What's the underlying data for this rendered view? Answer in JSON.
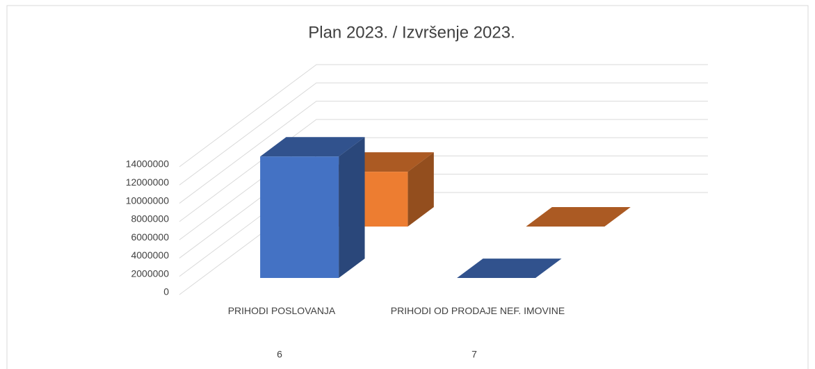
{
  "chart_data": {
    "type": "bar3d",
    "title": "Plan 2023. / Izvršenje 2023.",
    "categories": [
      "PRIHODI POSLOVANJA",
      "PRIHODI OD PRODAJE NEF. IMOVINE"
    ],
    "category_groups": [
      "6",
      "7"
    ],
    "series": [
      {
        "color": "#4472c4",
        "values": [
          13300000,
          0
        ]
      },
      {
        "color": "#ed7d31",
        "values": [
          6000000,
          0
        ]
      }
    ],
    "ylim": [
      0,
      14000000
    ],
    "yticks": [
      0,
      2000000,
      4000000,
      6000000,
      8000000,
      10000000,
      12000000,
      14000000
    ],
    "grid": true
  }
}
